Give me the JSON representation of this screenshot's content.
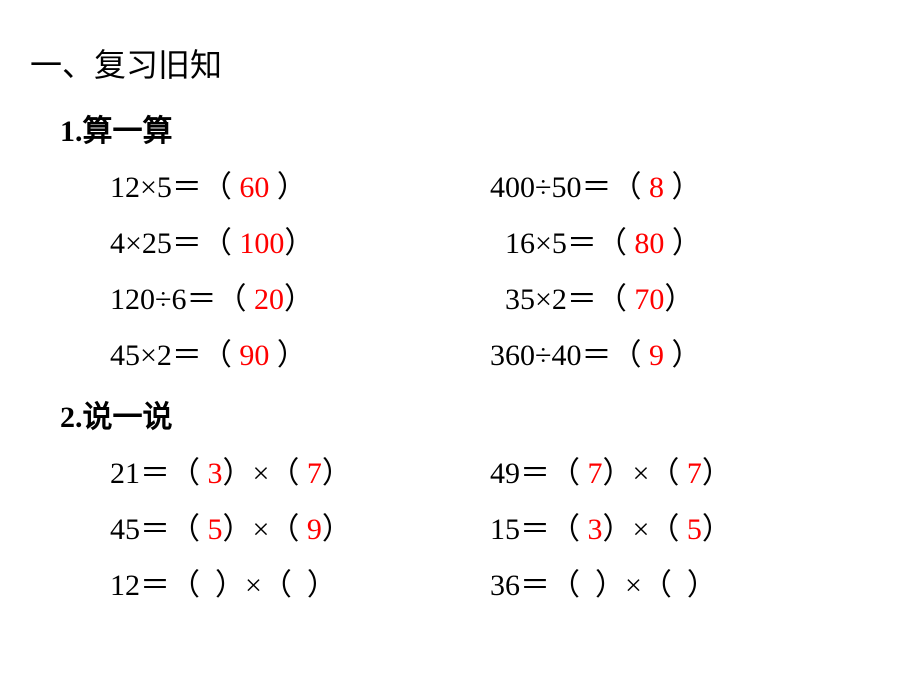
{
  "colors": {
    "background": "#ffffff",
    "text": "#000000",
    "answer": "#ff0000"
  },
  "section_title": "一、复习旧知",
  "subsection1": {
    "title": "1.算一算",
    "rows": [
      {
        "left_expr": "12×5＝",
        "left_answer": "60",
        "right_expr": "400÷50＝",
        "right_answer": "8"
      },
      {
        "left_expr": "4×25＝",
        "left_answer": "100",
        "right_expr": "16×5＝",
        "right_answer": "80"
      },
      {
        "left_expr": "120÷6＝",
        "left_answer": "20",
        "right_expr": "35×2＝",
        "right_answer": "70"
      },
      {
        "left_expr": "45×2＝",
        "left_answer": "90",
        "right_expr": "360÷40＝",
        "right_answer": "9"
      }
    ]
  },
  "subsection2": {
    "title": "2.说一说",
    "rows": [
      {
        "left_num": "21＝",
        "left_a": "3",
        "left_b": "7",
        "right_num": "49＝",
        "right_a": "7",
        "right_b": "7"
      },
      {
        "left_num": "45＝",
        "left_a": "5",
        "left_b": "9",
        "right_num": "15＝",
        "right_a": "3",
        "right_b": "5"
      },
      {
        "left_num": "12＝",
        "left_a": " ",
        "left_b": " ",
        "right_num": "36＝",
        "right_a": " ",
        "right_b": " "
      }
    ]
  },
  "parentheses": {
    "open": "（",
    "close": "）",
    "multiply": "×"
  }
}
